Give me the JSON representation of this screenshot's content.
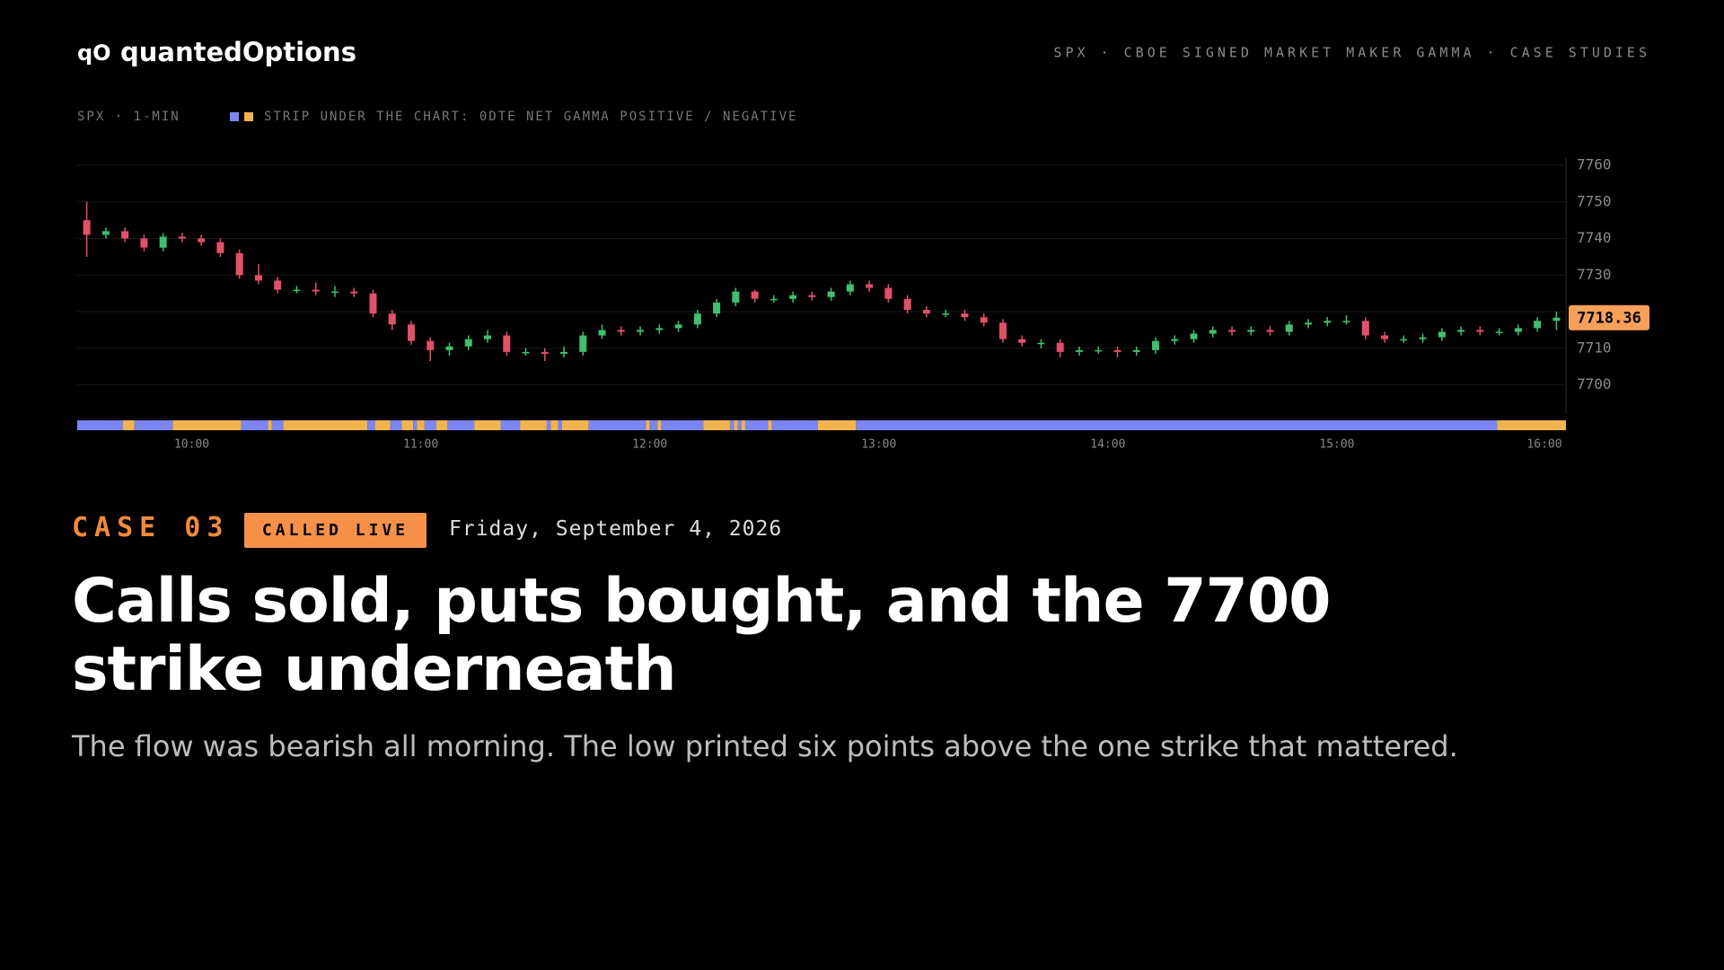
{
  "header": {
    "logo_mark": "qO",
    "brand": "quantedOptions",
    "nav": "SPX · CBOE SIGNED MARKET MAKER GAMMA · CASE STUDIES"
  },
  "chart_data": {
    "type": "candlestick",
    "label": "SPX · 1-MIN",
    "legend": "STRIP UNDER THE CHART: 0DTE NET GAMMA POSITIVE / NEGATIVE",
    "x": [
      "09:30",
      "09:35",
      "09:40",
      "09:45",
      "09:50",
      "09:55",
      "10:00",
      "10:05",
      "10:10",
      "10:15",
      "10:20",
      "10:25",
      "10:30",
      "10:35",
      "10:40",
      "10:45",
      "10:50",
      "10:55",
      "11:00",
      "11:05",
      "11:10",
      "11:15",
      "11:20",
      "11:25",
      "11:30",
      "11:35",
      "11:40",
      "11:45",
      "11:50",
      "11:55",
      "12:00",
      "12:05",
      "12:10",
      "12:15",
      "12:20",
      "12:25",
      "12:30",
      "12:35",
      "12:40",
      "12:45",
      "12:50",
      "12:55",
      "13:00",
      "13:05",
      "13:10",
      "13:15",
      "13:20",
      "13:25",
      "13:30",
      "13:35",
      "13:40",
      "13:45",
      "13:50",
      "13:55",
      "14:00",
      "14:05",
      "14:10",
      "14:15",
      "14:20",
      "14:25",
      "14:30",
      "14:35",
      "14:40",
      "14:45",
      "14:50",
      "14:55",
      "15:00",
      "15:05",
      "15:10",
      "15:15",
      "15:20",
      "15:25",
      "15:30",
      "15:35",
      "15:40",
      "15:45",
      "15:50",
      "15:55"
    ],
    "open": [
      7745,
      7741,
      7742,
      7740,
      7737.5,
      7740.5,
      7740,
      7739,
      7736,
      7730,
      7728.5,
      7726,
      7726,
      7725.5,
      7725.5,
      7725,
      7719.5,
      7716.5,
      7712,
      7709.5,
      7710.5,
      7712.5,
      7713.5,
      7709,
      7709,
      7708.5,
      7709,
      7713.5,
      7715,
      7714.5,
      7715,
      7715.5,
      7716.5,
      7719.5,
      7722.5,
      7725.5,
      7723.5,
      7723.5,
      7724.5,
      7724,
      7725.5,
      7727.5,
      7726.5,
      7723.5,
      7720.5,
      7719.5,
      7719.5,
      7718.5,
      7717,
      7712.5,
      7711.5,
      7711.5,
      7709,
      7709.5,
      7709.5,
      7709,
      7709.5,
      7712,
      7712.5,
      7714,
      7715,
      7714.5,
      7715,
      7714.5,
      7716.5,
      7717,
      7717.5,
      7717.5,
      7713.5,
      7712.5,
      7712.5,
      7713,
      7714.5,
      7715,
      7714.5,
      7714.5,
      7715.5,
      7717.5
    ],
    "high": [
      7750,
      7743,
      7743,
      7741,
      7741.5,
      7741.5,
      7741,
      7740,
      7737,
      7733,
      7729.5,
      7727,
      7728,
      7727,
      7726.5,
      7726,
      7720.5,
      7717.5,
      7713,
      7711.5,
      7713.5,
      7715,
      7714.5,
      7710,
      7710,
      7710.5,
      7714.5,
      7716.5,
      7716,
      7716,
      7716.5,
      7717.5,
      7720.5,
      7723.5,
      7726.5,
      7726,
      7724.5,
      7725.5,
      7725.5,
      7726.5,
      7728.5,
      7728.5,
      7727.5,
      7724.5,
      7721.5,
      7720.5,
      7720.5,
      7719.5,
      7718,
      7713.5,
      7712.5,
      7712.5,
      7710.5,
      7710.5,
      7710.5,
      7710.5,
      7713,
      7713.5,
      7715,
      7716,
      7716,
      7716,
      7716,
      7717.5,
      7718,
      7718.5,
      7719,
      7718.5,
      7714.5,
      7713.5,
      7714,
      7715.5,
      7716,
      7716,
      7715.5,
      7716.5,
      7718.5,
      7720
    ],
    "low": [
      7735,
      7740,
      7739,
      7736.5,
      7736.5,
      7739,
      7738,
      7735,
      7729,
      7727.5,
      7725,
      7725,
      7724.5,
      7724,
      7724,
      7718.5,
      7715,
      7711,
      7706.5,
      7708,
      7709.5,
      7711.5,
      7708,
      7708,
      7706.5,
      7707.5,
      7708,
      7712.5,
      7713.5,
      7713.5,
      7714,
      7714.5,
      7715.5,
      7718.5,
      7721.5,
      7722.5,
      7722.5,
      7722.5,
      7723,
      7723,
      7724.5,
      7725.5,
      7722.5,
      7719.5,
      7718.5,
      7718.5,
      7717.5,
      7716,
      7711.5,
      7710.5,
      7710,
      7707.5,
      7708,
      7708.5,
      7707.5,
      7708,
      7708.5,
      7711,
      7711.5,
      7713,
      7713.5,
      7713.5,
      7713.5,
      7713.5,
      7715.5,
      7716,
      7716.5,
      7712.5,
      7711.5,
      7711.5,
      7711.5,
      7712,
      7713.5,
      7713.5,
      7713.5,
      7713.5,
      7714.5,
      7715
    ],
    "close": [
      7741,
      7742,
      7740,
      7737.5,
      7740.5,
      7740,
      7739,
      7736,
      7730,
      7728.5,
      7726,
      7726,
      7725.5,
      7725.5,
      7725,
      7719.5,
      7716.5,
      7712,
      7709.5,
      7710.5,
      7712.5,
      7713.5,
      7709,
      7709,
      7708.5,
      7709,
      7713.5,
      7715,
      7714.5,
      7715,
      7715.5,
      7716.5,
      7719.5,
      7722.5,
      7725.5,
      7723.5,
      7723.5,
      7724.5,
      7724,
      7725.5,
      7727.5,
      7726.5,
      7723.5,
      7720.5,
      7719.5,
      7719.5,
      7718.5,
      7717,
      7712.5,
      7711.5,
      7711.5,
      7709,
      7709.5,
      7709.5,
      7709,
      7709.5,
      7712,
      7712.5,
      7714,
      7715,
      7714.5,
      7715,
      7714.5,
      7716.5,
      7717,
      7717.5,
      7717.5,
      7713.5,
      7712.5,
      7712.5,
      7713,
      7714.5,
      7715,
      7714.5,
      7714.5,
      7715.5,
      7717.5,
      7718.36
    ],
    "up_color": "#3fbf6f",
    "down_color": "#e0506a",
    "last_price_color": "#f7a05a",
    "xlim": [
      "09:30",
      "16:00"
    ],
    "xticks": [
      "10:00",
      "11:00",
      "12:00",
      "13:00",
      "14:00",
      "15:00",
      "16:00"
    ],
    "ylim": [
      7694,
      7760
    ],
    "yticks": [
      7700,
      7710,
      7720,
      7730,
      7740,
      7750,
      7760
    ],
    "grid": true,
    "gamma_strip": {
      "positive_color": "#7b86f2",
      "negative_color": "#f2b44f",
      "segments": [
        {
          "start": "09:30",
          "end": "09:42",
          "sign": "positive"
        },
        {
          "start": "09:42",
          "end": "09:45",
          "sign": "negative"
        },
        {
          "start": "09:45",
          "end": "09:55",
          "sign": "positive"
        },
        {
          "start": "09:55",
          "end": "10:13",
          "sign": "negative"
        },
        {
          "start": "10:13",
          "end": "10:20",
          "sign": "positive"
        },
        {
          "start": "10:20",
          "end": "10:21",
          "sign": "negative"
        },
        {
          "start": "10:21",
          "end": "10:24",
          "sign": "positive"
        },
        {
          "start": "10:24",
          "end": "10:46",
          "sign": "negative"
        },
        {
          "start": "10:46",
          "end": "10:48",
          "sign": "positive"
        },
        {
          "start": "10:48",
          "end": "10:52",
          "sign": "negative"
        },
        {
          "start": "10:52",
          "end": "10:55",
          "sign": "positive"
        },
        {
          "start": "10:55",
          "end": "10:58",
          "sign": "negative"
        },
        {
          "start": "10:58",
          "end": "10:59",
          "sign": "positive"
        },
        {
          "start": "10:59",
          "end": "11:01",
          "sign": "negative"
        },
        {
          "start": "11:01",
          "end": "11:04",
          "sign": "positive"
        },
        {
          "start": "11:04",
          "end": "11:07",
          "sign": "negative"
        },
        {
          "start": "11:07",
          "end": "11:14",
          "sign": "positive"
        },
        {
          "start": "11:14",
          "end": "11:21",
          "sign": "negative"
        },
        {
          "start": "11:21",
          "end": "11:26",
          "sign": "positive"
        },
        {
          "start": "11:26",
          "end": "11:33",
          "sign": "negative"
        },
        {
          "start": "11:33",
          "end": "11:34",
          "sign": "positive"
        },
        {
          "start": "11:34",
          "end": "11:36",
          "sign": "negative"
        },
        {
          "start": "11:36",
          "end": "11:37",
          "sign": "positive"
        },
        {
          "start": "11:37",
          "end": "11:44",
          "sign": "negative"
        },
        {
          "start": "11:44",
          "end": "11:59",
          "sign": "positive"
        },
        {
          "start": "11:59",
          "end": "12:00",
          "sign": "negative"
        },
        {
          "start": "12:00",
          "end": "12:02",
          "sign": "positive"
        },
        {
          "start": "12:02",
          "end": "12:03",
          "sign": "negative"
        },
        {
          "start": "12:03",
          "end": "12:14",
          "sign": "positive"
        },
        {
          "start": "12:14",
          "end": "12:21",
          "sign": "negative"
        },
        {
          "start": "12:21",
          "end": "12:22",
          "sign": "positive"
        },
        {
          "start": "12:22",
          "end": "12:23",
          "sign": "negative"
        },
        {
          "start": "12:23",
          "end": "12:24",
          "sign": "positive"
        },
        {
          "start": "12:24",
          "end": "12:25",
          "sign": "negative"
        },
        {
          "start": "12:25",
          "end": "12:31",
          "sign": "positive"
        },
        {
          "start": "12:31",
          "end": "12:32",
          "sign": "negative"
        },
        {
          "start": "12:32",
          "end": "12:44",
          "sign": "positive"
        },
        {
          "start": "12:44",
          "end": "12:54",
          "sign": "negative"
        },
        {
          "start": "12:54",
          "end": "15:42",
          "sign": "positive"
        },
        {
          "start": "15:42",
          "end": "16:00",
          "sign": "negative"
        }
      ]
    }
  },
  "case": {
    "label": "CASE 03",
    "badge": "CALLED LIVE",
    "date": "Friday, September 4, 2026",
    "title": "Calls sold, puts bought, and the 7700 strike underneath",
    "subtitle": "The flow was bearish all morning. The low printed six points above the one strike that mattered."
  }
}
